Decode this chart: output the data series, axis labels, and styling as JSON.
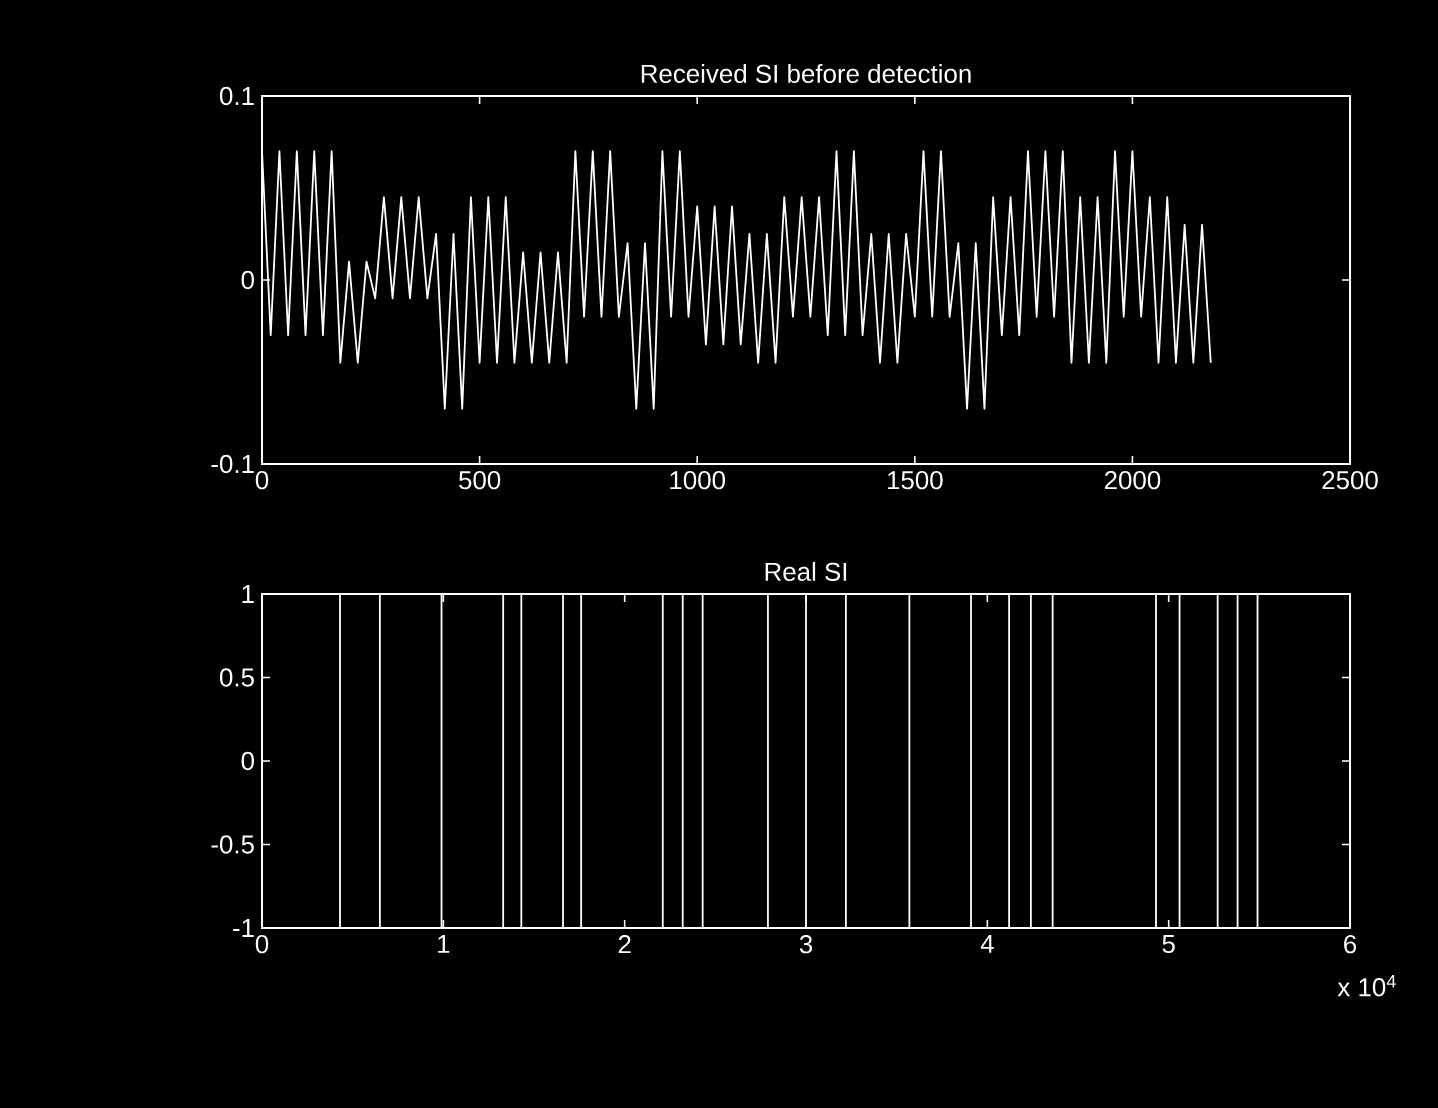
{
  "chart_data": [
    {
      "type": "line",
      "title": "Received SI before detection",
      "color": "#ffffff",
      "x": [
        0,
        20,
        40,
        60,
        80,
        100,
        120,
        140,
        160,
        180,
        200,
        220,
        240,
        260,
        280,
        300,
        320,
        340,
        360,
        380,
        400,
        420,
        440,
        460,
        480,
        500,
        520,
        540,
        560,
        580,
        600,
        620,
        640,
        660,
        680,
        700,
        720,
        740,
        760,
        780,
        800,
        820,
        840,
        860,
        880,
        900,
        920,
        940,
        960,
        980,
        1000,
        1020,
        1040,
        1060,
        1080,
        1100,
        1120,
        1140,
        1160,
        1180,
        1200,
        1220,
        1240,
        1260,
        1280,
        1300,
        1320,
        1340,
        1360,
        1380,
        1400,
        1420,
        1440,
        1460,
        1480,
        1500,
        1520,
        1540,
        1560,
        1580,
        1600,
        1620,
        1640,
        1660,
        1680,
        1700,
        1720,
        1740,
        1760,
        1780,
        1800,
        1820,
        1840,
        1860,
        1880,
        1900,
        1920,
        1940,
        1960,
        1980,
        2000,
        2020,
        2040,
        2060,
        2080,
        2100,
        2120,
        2140,
        2160,
        2180
      ],
      "values": [
        0.07,
        -0.03,
        0.07,
        -0.03,
        0.07,
        -0.03,
        0.07,
        -0.03,
        0.07,
        -0.045,
        0.01,
        -0.045,
        0.01,
        -0.01,
        0.045,
        -0.01,
        0.045,
        -0.01,
        0.045,
        -0.01,
        0.025,
        -0.07,
        0.025,
        -0.07,
        0.045,
        -0.045,
        0.045,
        -0.045,
        0.045,
        -0.045,
        0.015,
        -0.045,
        0.015,
        -0.045,
        0.015,
        -0.045,
        0.07,
        -0.02,
        0.07,
        -0.02,
        0.07,
        -0.02,
        0.02,
        -0.07,
        0.02,
        -0.07,
        0.07,
        -0.02,
        0.07,
        -0.02,
        0.04,
        -0.035,
        0.04,
        -0.035,
        0.04,
        -0.035,
        0.025,
        -0.045,
        0.025,
        -0.045,
        0.045,
        -0.02,
        0.045,
        -0.02,
        0.045,
        -0.03,
        0.07,
        -0.03,
        0.07,
        -0.03,
        0.025,
        -0.045,
        0.025,
        -0.045,
        0.025,
        -0.02,
        0.07,
        -0.02,
        0.07,
        -0.02,
        0.02,
        -0.07,
        0.02,
        -0.07,
        0.045,
        -0.03,
        0.045,
        -0.03,
        0.07,
        -0.02,
        0.07,
        -0.02,
        0.07,
        -0.045,
        0.045,
        -0.045,
        0.045,
        -0.045,
        0.07,
        -0.02,
        0.07,
        -0.02,
        0.045,
        -0.045,
        0.045,
        -0.045,
        0.03,
        -0.045,
        0.03,
        -0.045
      ],
      "xlim": [
        0,
        2500
      ],
      "ylim": [
        -0.1,
        0.1
      ],
      "xticks": [
        0,
        500,
        1000,
        1500,
        2000,
        2500
      ],
      "yticks": [
        -0.1,
        0,
        0.1
      ]
    },
    {
      "type": "line",
      "title": "Real SI",
      "color": "#ffffff",
      "x": [
        0.43,
        0.43,
        0.43,
        0.65,
        0.65,
        0.65,
        0.99,
        0.99,
        0.99,
        1.33,
        1.33,
        1.33,
        1.43,
        1.43,
        1.43,
        1.66,
        1.66,
        1.66,
        1.76,
        1.76,
        1.76,
        2.21,
        2.21,
        2.21,
        2.32,
        2.32,
        2.32,
        2.43,
        2.43,
        2.43,
        2.79,
        2.79,
        2.79,
        3.0,
        3.0,
        3.0,
        3.22,
        3.22,
        3.22,
        3.57,
        3.57,
        3.57,
        3.91,
        3.91,
        3.91,
        4.12,
        4.12,
        4.12,
        4.24,
        4.24,
        4.24,
        4.36,
        4.36,
        4.36,
        4.93,
        4.93,
        4.93,
        5.06,
        5.06,
        5.06,
        5.27,
        5.27,
        5.27,
        5.38,
        5.38,
        5.38,
        5.49,
        5.49,
        5.49
      ],
      "values": [
        -1,
        1,
        -1,
        -1,
        1,
        -1,
        -1,
        1,
        -1,
        -1,
        1,
        -1,
        -1,
        1,
        -1,
        -1,
        1,
        -1,
        -1,
        1,
        -1,
        -1,
        1,
        -1,
        -1,
        1,
        -1,
        -1,
        1,
        -1,
        -1,
        1,
        -1,
        -1,
        1,
        -1,
        -1,
        1,
        -1,
        -1,
        1,
        -1,
        -1,
        1,
        -1,
        -1,
        1,
        -1,
        -1,
        1,
        -1,
        -1,
        1,
        -1,
        -1,
        1,
        -1,
        -1,
        1,
        -1,
        -1,
        1,
        -1,
        -1,
        1,
        -1,
        -1,
        1,
        -1
      ],
      "xlim": [
        0,
        6
      ],
      "ylim": [
        -1,
        1
      ],
      "xticks": [
        0,
        1,
        2,
        3,
        4,
        5,
        6
      ],
      "yticks": [
        -1,
        -0.5,
        0,
        0.5,
        1
      ],
      "annotations": [
        "x 10$^{4}$"
      ]
    }
  ]
}
